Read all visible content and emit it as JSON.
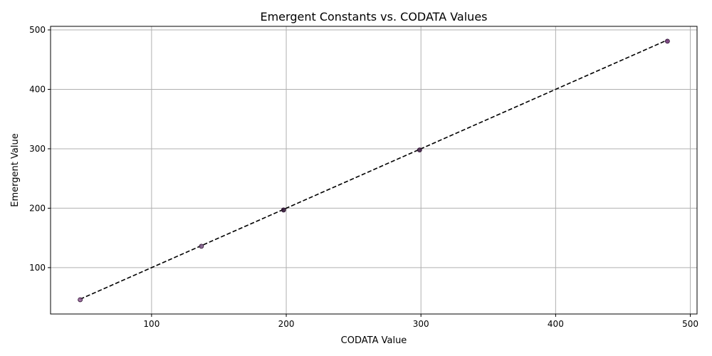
{
  "chart_data": {
    "type": "scatter",
    "title": "Emergent Constants vs. CODATA Values",
    "xlabel": "CODATA Value",
    "ylabel": "Emergent Value",
    "xlim": [
      25,
      505
    ],
    "ylim": [
      22,
      506
    ],
    "xticks": [
      100,
      200,
      300,
      400,
      500
    ],
    "yticks": [
      100,
      200,
      300,
      400,
      500
    ],
    "grid": true,
    "points": [
      {
        "x": 47,
        "y": 46,
        "color": "#8e5a92"
      },
      {
        "x": 137,
        "y": 136,
        "color": "#7f5a8a"
      },
      {
        "x": 198,
        "y": 197,
        "color": "#2a0e2e"
      },
      {
        "x": 299,
        "y": 298,
        "color": "#3a1740"
      },
      {
        "x": 483,
        "y": 481,
        "color": "#6b2f73"
      }
    ],
    "reference_line": {
      "style": "dashed",
      "color": "#000000"
    },
    "colors": {
      "grid": "#b0b0b0",
      "axis": "#000000"
    }
  }
}
